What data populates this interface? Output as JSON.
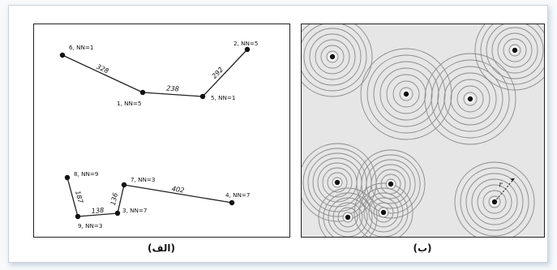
{
  "panel_a": {
    "caption": "(الف)",
    "nodes": [
      {
        "id": "n6",
        "label": "6, NN=1"
      },
      {
        "id": "n1",
        "label": "1, NN=5"
      },
      {
        "id": "n5",
        "label": "5, NN=1"
      },
      {
        "id": "n2",
        "label": "2, NN=5"
      },
      {
        "id": "n8",
        "label": "8, NN=9"
      },
      {
        "id": "n9",
        "label": "9, NN=3"
      },
      {
        "id": "n3",
        "label": "3, NN=7"
      },
      {
        "id": "n7",
        "label": "7, NN=3"
      },
      {
        "id": "n4",
        "label": "4, NN=7"
      }
    ],
    "edges": [
      {
        "from": "n6",
        "to": "n1",
        "label": "328"
      },
      {
        "from": "n1",
        "to": "n5",
        "label": "238"
      },
      {
        "from": "n5",
        "to": "n2",
        "label": "292"
      },
      {
        "from": "n8",
        "to": "n9",
        "label": "187"
      },
      {
        "from": "n9",
        "to": "n3",
        "label": "138"
      },
      {
        "from": "n3",
        "to": "n7",
        "label": "136"
      },
      {
        "from": "n7",
        "to": "n4",
        "label": "402"
      }
    ]
  },
  "panel_b": {
    "caption": "(ب)",
    "radius_label": "r",
    "points": [
      {
        "id": "p1"
      },
      {
        "id": "p2"
      },
      {
        "id": "p3"
      },
      {
        "id": "p4"
      },
      {
        "id": "p5"
      },
      {
        "id": "p6"
      },
      {
        "id": "p7"
      },
      {
        "id": "p8"
      },
      {
        "id": "p9"
      },
      {
        "id": "p10"
      }
    ]
  },
  "colors": {
    "frame_shadow": "#46648c",
    "panel_b_background": "#e6e6e6",
    "ring_stroke": "#8a8a8a",
    "ink": "#111111"
  }
}
